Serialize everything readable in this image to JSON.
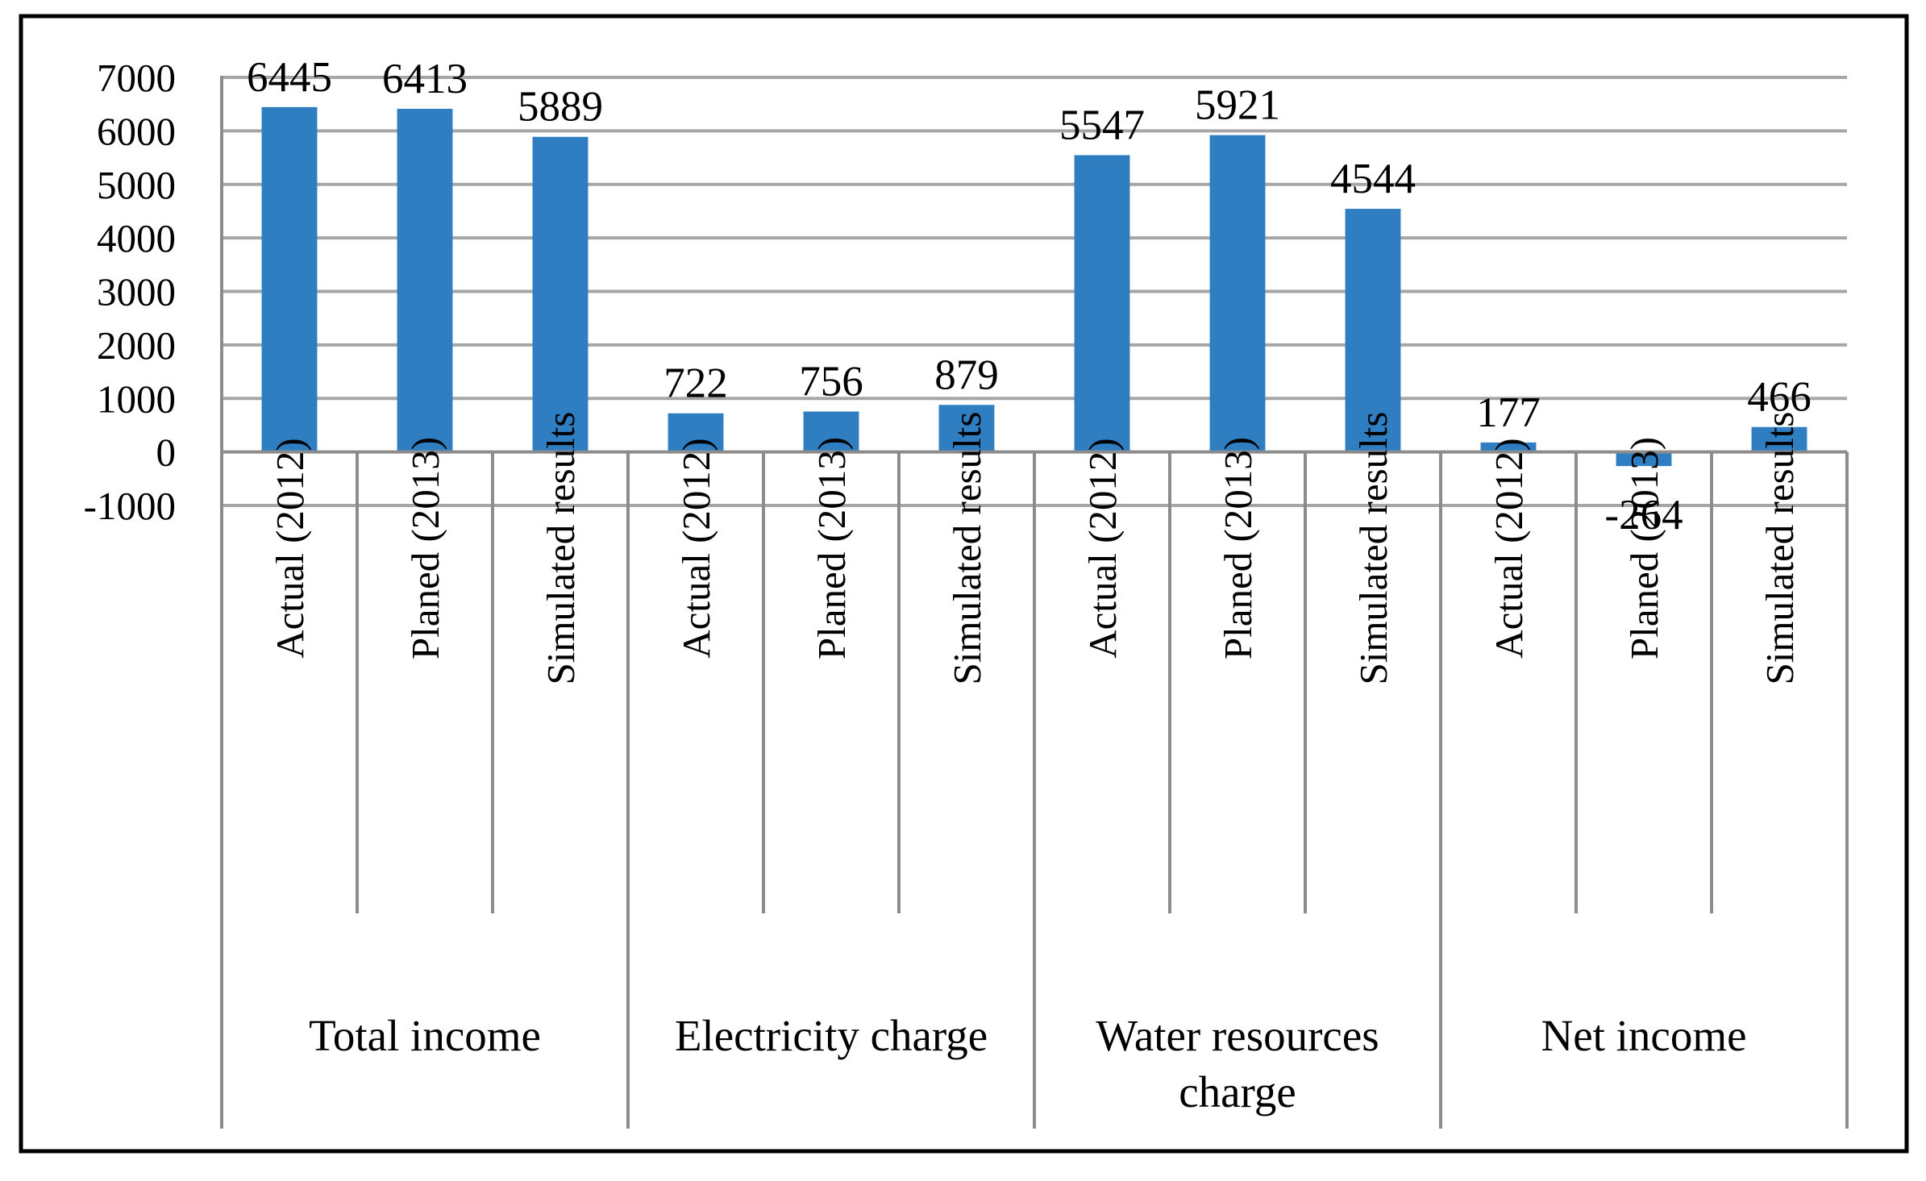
{
  "chart_data": {
    "type": "bar",
    "title": "",
    "xlabel": "",
    "ylabel": "",
    "ylim": [
      -1000,
      7000
    ],
    "yticks": [
      7000,
      6000,
      5000,
      4000,
      3000,
      2000,
      1000,
      0,
      -1000
    ],
    "grid": true,
    "legend": "none",
    "colors": {
      "bar": "#2E7EC1",
      "grid": "#A6A6A6",
      "axis": "#8C8C8C",
      "frame": "#000000"
    },
    "groups": [
      {
        "name": "Total income",
        "categories": [
          "Actual (2012)",
          "Planed (2013)",
          "Simulated results"
        ],
        "values": [
          6445,
          6413,
          5889
        ]
      },
      {
        "name": "Electricity charge",
        "categories": [
          "Actual (2012)",
          "Planed (2013)",
          "Simulated results"
        ],
        "values": [
          722,
          756,
          879
        ]
      },
      {
        "name": "Water resources charge",
        "categories": [
          "Actual (2012)",
          "Planed (2013)",
          "Simulated results"
        ],
        "values": [
          5547,
          5921,
          4544
        ]
      },
      {
        "name": "Net income",
        "categories": [
          "Actual (2012)",
          "Planed (2013)",
          "Simulated results"
        ],
        "values": [
          177,
          -264,
          466
        ]
      }
    ]
  }
}
